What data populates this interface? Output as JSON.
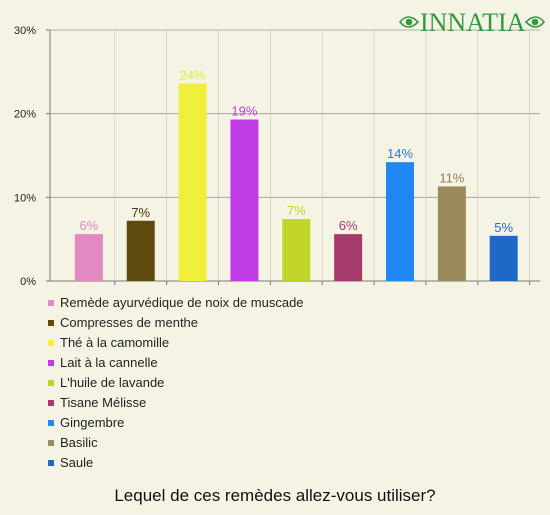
{
  "brand": {
    "name": "INNATIA",
    "color": "#2f9b3f"
  },
  "question": "Lequel de ces remèdes allez-vous utiliser?",
  "chart_data": {
    "type": "bar",
    "categories": [
      "Remède ayurvédique de noix de muscade",
      "Compresses de menthe",
      "Thé à la camomille",
      "Lait à la cannelle",
      "L'huile de lavande",
      "Tisane Mélisse",
      "Gingembre",
      "Basilic",
      "Saule"
    ],
    "values": [
      5.6,
      7.2,
      23.6,
      19.3,
      7.4,
      5.6,
      14.2,
      11.3,
      5.4
    ],
    "data_labels": [
      "6%",
      "7%",
      "24%",
      "19%",
      "7%",
      "6%",
      "14%",
      "11%",
      "5%"
    ],
    "colors": [
      "#e389c1",
      "#5e4a0c",
      "#f0f03c",
      "#c23ce6",
      "#c2d42a",
      "#a53a6c",
      "#1e88f0",
      "#9b8a5c",
      "#1f69c4"
    ],
    "label_colors": [
      "#e389c1",
      "#4a3a08",
      "#e8e83a",
      "#c23ce6",
      "#c2d42a",
      "#a53a6c",
      "#1e7de0",
      "#8f7f52",
      "#1f69c4"
    ],
    "yticks": [
      "0%",
      "10%",
      "20%",
      "30%"
    ],
    "ylim": [
      0,
      30
    ],
    "grid": true,
    "legend_position": "bottom"
  }
}
